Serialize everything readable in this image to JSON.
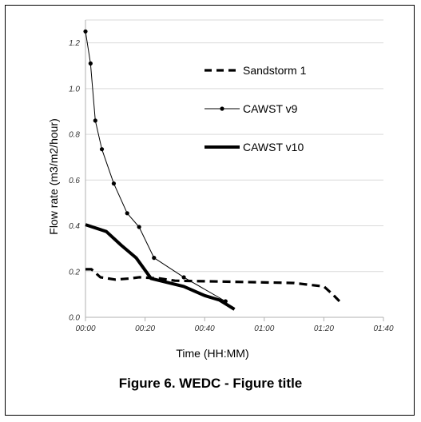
{
  "caption": "Figure 6. WEDC - Figure title",
  "chart_data": {
    "type": "line",
    "title": "",
    "xlabel": "Time (HH:MM)",
    "ylabel": "Flow rate (m3/m2/hour)",
    "xlim_minutes": [
      0,
      100
    ],
    "ylim": [
      0,
      1.3
    ],
    "x_ticks": [
      {
        "minutes": 0,
        "label": "00:00"
      },
      {
        "minutes": 20,
        "label": "00:20"
      },
      {
        "minutes": 40,
        "label": "00:40"
      },
      {
        "minutes": 60,
        "label": "01:00"
      },
      {
        "minutes": 80,
        "label": "01:20"
      },
      {
        "minutes": 100,
        "label": "01:40"
      }
    ],
    "y_ticks": [
      {
        "value": 0,
        "label": "0.0"
      },
      {
        "value": 0.2,
        "label": "0.2"
      },
      {
        "value": 0.4,
        "label": "0.4"
      },
      {
        "value": 0.6,
        "label": "0.6"
      },
      {
        "value": 0.8,
        "label": "0.8"
      },
      {
        "value": 1.0,
        "label": "1.0"
      },
      {
        "value": 1.2,
        "label": "1.2"
      }
    ],
    "grid": "horizontal",
    "legend_position": "top-right",
    "series": [
      {
        "name": "Sandstorm 1",
        "style": "dashed",
        "markers": false,
        "color": "#000000",
        "points": [
          [
            0,
            0.21
          ],
          [
            2,
            0.21
          ],
          [
            5,
            0.175
          ],
          [
            10,
            0.165
          ],
          [
            15,
            0.17
          ],
          [
            18,
            0.175
          ],
          [
            25,
            0.17
          ],
          [
            30,
            0.16
          ],
          [
            50,
            0.155
          ],
          [
            70,
            0.15
          ],
          [
            80,
            0.135
          ],
          [
            83,
            0.1
          ],
          [
            86,
            0.06
          ]
        ]
      },
      {
        "name": "CAWST v9",
        "style": "solid-thin",
        "markers": true,
        "color": "#000000",
        "points": [
          [
            0,
            1.25
          ],
          [
            1.7,
            1.11
          ],
          [
            3.3,
            0.86
          ],
          [
            5.5,
            0.735
          ],
          [
            9.5,
            0.585
          ],
          [
            14,
            0.455
          ],
          [
            18,
            0.395
          ],
          [
            23,
            0.26
          ],
          [
            33,
            0.175
          ],
          [
            47,
            0.07
          ]
        ]
      },
      {
        "name": "CAWST v10",
        "style": "solid-thick",
        "markers": false,
        "color": "#000000",
        "points": [
          [
            0,
            0.405
          ],
          [
            7,
            0.375
          ],
          [
            12,
            0.315
          ],
          [
            17,
            0.26
          ],
          [
            22,
            0.17
          ],
          [
            33,
            0.135
          ],
          [
            40,
            0.095
          ],
          [
            45,
            0.075
          ],
          [
            50,
            0.035
          ]
        ]
      }
    ]
  }
}
